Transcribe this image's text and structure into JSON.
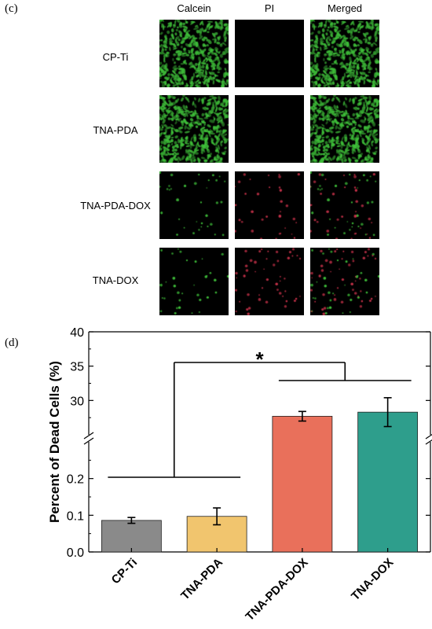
{
  "panel_c": {
    "label": "(c)",
    "columns": [
      "Calcein",
      "PI",
      "Merged"
    ],
    "rows": [
      "CP-Ti",
      "TNA-PDA",
      "TNA-PDA-DOX",
      "TNA-DOX"
    ],
    "image_density": {
      "CP-Ti": {
        "green": "dense",
        "red": "none"
      },
      "TNA-PDA": {
        "green": "dense",
        "red": "none"
      },
      "TNA-PDA-DOX": {
        "green": "sparse",
        "red": "sparse"
      },
      "TNA-DOX": {
        "green": "sparse",
        "red": "moderate"
      }
    },
    "colors": {
      "live": "#3fbf3a",
      "dead": "#c8324a",
      "background": "#000000"
    }
  },
  "panel_d": {
    "label": "(d)",
    "significance": "*"
  },
  "chart_data": {
    "type": "bar",
    "categories": [
      "CP-Ti",
      "TNA-PDA",
      "TNA-PDA-DOX",
      "TNA-DOX"
    ],
    "values": [
      0.086,
      0.097,
      27.7,
      28.3
    ],
    "errors": [
      0.008,
      0.023,
      0.7,
      2.1
    ],
    "colors": [
      "#8a8a8a",
      "#f1c56e",
      "#e9705b",
      "#2e9e8c"
    ],
    "ylabel": "Percent of Dead Cells (%)",
    "xlabel": "",
    "axis_break": true,
    "y_lower": {
      "range": [
        0.0,
        0.3
      ],
      "ticks": [
        "0.0",
        "0.1",
        "0.2"
      ]
    },
    "y_upper": {
      "range": [
        25,
        40
      ],
      "ticks": [
        "30",
        "35",
        "40"
      ]
    },
    "grid": false,
    "significance": {
      "groups": [
        [
          "CP-Ti",
          "TNA-PDA"
        ],
        [
          "TNA-PDA-DOX",
          "TNA-DOX"
        ]
      ],
      "symbol": "*"
    }
  }
}
